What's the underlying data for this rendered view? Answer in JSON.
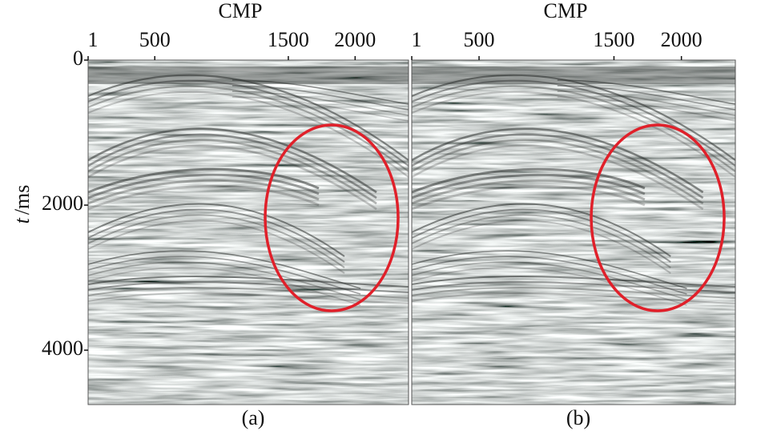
{
  "y_axis": {
    "label_var": "t",
    "label_unit": "/ms",
    "ylim": [
      0,
      4750
    ],
    "yticks": [
      0,
      2000,
      4000
    ]
  },
  "panels": [
    {
      "label": "(a)",
      "x_axis": {
        "title": "CMP",
        "xlim": [
          1,
          2400
        ],
        "xticks": [
          1,
          500,
          1500,
          2000
        ]
      }
    },
    {
      "label": "(b)",
      "x_axis": {
        "title": "CMP",
        "xlim": [
          1,
          2400
        ],
        "xticks": [
          1,
          500,
          1500,
          2000
        ]
      }
    }
  ]
}
